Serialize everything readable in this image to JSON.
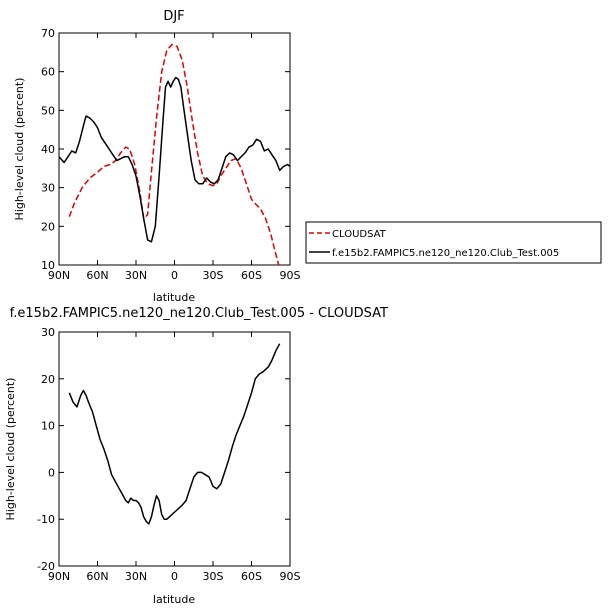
{
  "chart_data": [
    {
      "type": "line",
      "title": "DJF",
      "xlabel": "latitude",
      "ylabel": "High-level cloud (percent)",
      "xlim": [
        90,
        -90
      ],
      "ylim": [
        10,
        70
      ],
      "xticks": [
        90,
        60,
        30,
        0,
        -30,
        -60,
        -90
      ],
      "xtick_labels": [
        "90N",
        "60N",
        "30N",
        "0",
        "30S",
        "60S",
        "90S"
      ],
      "yticks": [
        10,
        20,
        30,
        40,
        50,
        60,
        70
      ],
      "grid": false,
      "legend_position": "right",
      "series": [
        {
          "name": "CLOUDSAT",
          "color": "#e00000",
          "dash": "dashed",
          "x": [
            82,
            78,
            72,
            66,
            60,
            55,
            50,
            46,
            42,
            38,
            35,
            31,
            27,
            24,
            21,
            18,
            14,
            10,
            6,
            2,
            -2,
            -6,
            -10,
            -14,
            -18,
            -22,
            -26,
            -30,
            -33,
            -36,
            -40,
            -44,
            -48,
            -52,
            -56,
            -60,
            -64,
            -67,
            -71,
            -75,
            -78,
            -82
          ],
          "y": [
            22.5,
            26,
            30,
            32.5,
            34,
            35.5,
            36,
            37,
            39,
            40.5,
            40,
            36,
            29,
            22,
            23,
            34,
            48,
            60,
            65.5,
            67,
            66.5,
            63,
            56,
            47,
            39,
            33,
            31,
            30.5,
            31,
            33,
            35,
            37,
            37.5,
            35,
            31,
            27,
            25.5,
            24.5,
            22,
            18,
            14,
            9
          ]
        },
        {
          "name": "f.e15b2.FAMPIC5.ne120_ne120.Club_Test.005",
          "color": "#000000",
          "dash": "solid",
          "x": [
            90,
            86,
            83,
            80,
            77,
            74,
            71,
            69,
            66,
            63,
            60,
            57,
            54,
            51,
            48,
            45,
            42,
            39,
            36,
            33,
            30,
            27,
            24,
            21,
            18,
            15,
            12,
            9,
            7,
            5,
            3,
            1,
            -1,
            -3,
            -5,
            -7,
            -10,
            -13,
            -16,
            -19,
            -22,
            -25,
            -28,
            -31,
            -34,
            -37,
            -40,
            -43,
            -46,
            -49,
            -52,
            -55,
            -58,
            -61,
            -64,
            -67,
            -70,
            -73,
            -76,
            -79,
            -82,
            -85,
            -88,
            -90
          ],
          "y": [
            38,
            36.5,
            38,
            39.5,
            39,
            42,
            46,
            48.5,
            48,
            47,
            45.5,
            43,
            41.5,
            40,
            38.5,
            37,
            37.5,
            38,
            38,
            36,
            33,
            28,
            22,
            16.5,
            16,
            20,
            33,
            47,
            56,
            57.5,
            56,
            57.5,
            58.5,
            58,
            56,
            51,
            44,
            37,
            32,
            31,
            31,
            32.5,
            31.5,
            31,
            32,
            35,
            38,
            39,
            38.5,
            37,
            38,
            39,
            40.5,
            41,
            42.5,
            42,
            39.5,
            40,
            38.5,
            37,
            34.5,
            35.5,
            36,
            35.5
          ]
        }
      ]
    },
    {
      "type": "line",
      "title": "f.e15b2.FAMPIC5.ne120_ne120.Club_Test.005 - CLOUDSAT",
      "xlabel": "latitude",
      "ylabel": "High-level cloud (percent)",
      "xlim": [
        90,
        -90
      ],
      "ylim": [
        -20,
        30
      ],
      "xticks": [
        90,
        60,
        30,
        0,
        -30,
        -60,
        -90
      ],
      "xtick_labels": [
        "90N",
        "60N",
        "30N",
        "0",
        "30S",
        "60S",
        "90S"
      ],
      "yticks": [
        -20,
        -10,
        0,
        10,
        20,
        30
      ],
      "grid": false,
      "series": [
        {
          "color": "#000000",
          "x": [
            82,
            79,
            76,
            73,
            71,
            69,
            67,
            64,
            61,
            58,
            55,
            52,
            49,
            46,
            43,
            40,
            38,
            36,
            34,
            32,
            30,
            28,
            26,
            24,
            22,
            20,
            18,
            16,
            14,
            12,
            10,
            8,
            6,
            4,
            2,
            0,
            -2,
            -4,
            -6,
            -9,
            -12,
            -15,
            -18,
            -21,
            -24,
            -27,
            -30,
            -33,
            -36,
            -39,
            -42,
            -45,
            -48,
            -51,
            -54,
            -57,
            -60,
            -63,
            -66,
            -69,
            -71,
            -73,
            -76,
            -79,
            -82
          ],
          "y": [
            17,
            15,
            14,
            16.5,
            17.5,
            16.5,
            15,
            13,
            10,
            7,
            5,
            2.5,
            -0.5,
            -2,
            -3.5,
            -5,
            -6,
            -6.5,
            -5.5,
            -6,
            -6,
            -6.5,
            -7.5,
            -9.5,
            -10.5,
            -11,
            -9.5,
            -7,
            -5,
            -6,
            -9,
            -10,
            -10,
            -9.5,
            -9,
            -8.5,
            -8,
            -7.5,
            -7,
            -6,
            -3.5,
            -1,
            0,
            0,
            -0.5,
            -1,
            -3,
            -3.5,
            -2.5,
            0,
            2.5,
            5.5,
            8,
            10,
            12,
            14.5,
            17,
            20,
            21,
            21.5,
            22,
            22.5,
            24,
            26,
            27.5
          ]
        }
      ]
    }
  ]
}
